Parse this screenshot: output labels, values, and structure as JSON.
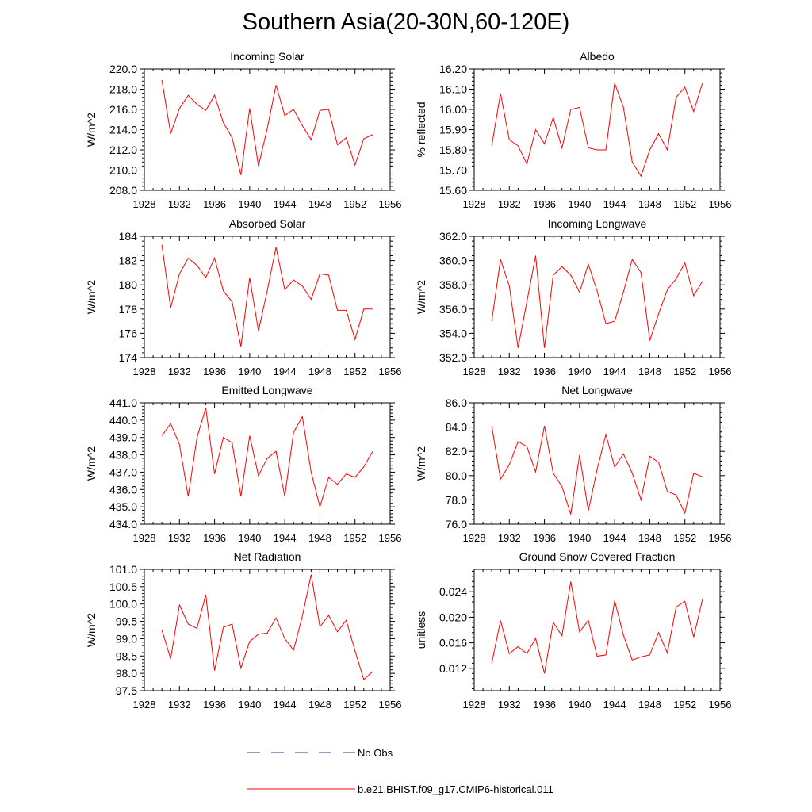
{
  "title": "Southern Asia(20-30N,60-120E)",
  "colors": {
    "model": "#ff0000",
    "obs": "#2c3d8f",
    "axis": "#000000"
  },
  "legend": {
    "obs_label": "No Obs",
    "model_label": "b.e21.BHIST.f09_g17.CMIP6-historical.011"
  },
  "chart_data": [
    {
      "type": "line",
      "title": "Incoming Solar",
      "ylabel": "W/m^2",
      "xlim": [
        1928,
        1956
      ],
      "xticks": [
        1928,
        1932,
        1936,
        1940,
        1944,
        1948,
        1952,
        1956
      ],
      "ylim": [
        208,
        220
      ],
      "yticks": [
        "208.0",
        "210.0",
        "212.0",
        "214.0",
        "216.0",
        "218.0",
        "220.0"
      ],
      "series": [
        {
          "x": [
            1930,
            1931,
            1932,
            1933,
            1934,
            1935,
            1936,
            1937,
            1938,
            1939,
            1940,
            1941,
            1942,
            1943,
            1944,
            1945,
            1946,
            1947,
            1948,
            1949,
            1950,
            1951,
            1952,
            1953,
            1954
          ],
          "values": [
            218.9,
            213.6,
            216.1,
            217.4,
            216.5,
            215.9,
            217.4,
            214.7,
            213.2,
            209.5,
            216.1,
            210.4,
            214.1,
            218.4,
            215.4,
            216.0,
            214.4,
            213.0,
            215.9,
            216.0,
            212.5,
            213.2,
            210.5,
            213.1,
            213.5
          ]
        }
      ]
    },
    {
      "type": "line",
      "title": "Albedo",
      "ylabel": "% reflected",
      "xlim": [
        1928,
        1956
      ],
      "xticks": [
        1928,
        1932,
        1936,
        1940,
        1944,
        1948,
        1952,
        1956
      ],
      "ylim": [
        15.6,
        16.2
      ],
      "yticks": [
        "15.60",
        "15.70",
        "15.80",
        "15.90",
        "16.00",
        "16.10",
        "16.20"
      ],
      "series": [
        {
          "x": [
            1930,
            1931,
            1932,
            1933,
            1934,
            1935,
            1936,
            1937,
            1938,
            1939,
            1940,
            1941,
            1942,
            1943,
            1944,
            1945,
            1946,
            1947,
            1948,
            1949,
            1950,
            1951,
            1952,
            1953,
            1954
          ],
          "values": [
            15.82,
            16.08,
            15.85,
            15.82,
            15.73,
            15.9,
            15.83,
            15.96,
            15.81,
            16.0,
            16.01,
            15.81,
            15.8,
            15.8,
            16.13,
            16.01,
            15.74,
            15.67,
            15.8,
            15.88,
            15.8,
            16.06,
            16.11,
            15.99,
            16.13
          ]
        }
      ]
    },
    {
      "type": "line",
      "title": "Absorbed Solar",
      "ylabel": "W/m^2",
      "xlim": [
        1928,
        1956
      ],
      "xticks": [
        1928,
        1932,
        1936,
        1940,
        1944,
        1948,
        1952,
        1956
      ],
      "ylim": [
        174,
        184
      ],
      "yticks": [
        "174",
        "176",
        "178",
        "180",
        "182",
        "184"
      ],
      "series": [
        {
          "x": [
            1930,
            1931,
            1932,
            1933,
            1934,
            1935,
            1936,
            1937,
            1938,
            1939,
            1940,
            1941,
            1942,
            1943,
            1944,
            1945,
            1946,
            1947,
            1948,
            1949,
            1950,
            1951,
            1952,
            1953,
            1954
          ],
          "values": [
            183.3,
            178.1,
            180.9,
            182.2,
            181.6,
            180.6,
            182.2,
            179.5,
            178.6,
            174.9,
            180.6,
            176.2,
            179.5,
            183.1,
            179.6,
            180.4,
            179.9,
            178.8,
            180.9,
            180.8,
            177.9,
            177.9,
            175.5,
            178.0,
            178.0
          ]
        }
      ]
    },
    {
      "type": "line",
      "title": "Incoming Longwave",
      "ylabel": "W/m^2",
      "xlim": [
        1928,
        1956
      ],
      "xticks": [
        1928,
        1932,
        1936,
        1940,
        1944,
        1948,
        1952,
        1956
      ],
      "ylim": [
        352,
        362
      ],
      "yticks": [
        "352.0",
        "354.0",
        "356.0",
        "358.0",
        "360.0",
        "362.0"
      ],
      "series": [
        {
          "x": [
            1930,
            1931,
            1932,
            1933,
            1934,
            1935,
            1936,
            1937,
            1938,
            1939,
            1940,
            1941,
            1942,
            1943,
            1944,
            1945,
            1946,
            1947,
            1948,
            1949,
            1950,
            1951,
            1952,
            1953,
            1954
          ],
          "values": [
            355.0,
            360.1,
            357.9,
            352.8,
            356.6,
            360.4,
            352.8,
            358.8,
            359.5,
            358.8,
            357.4,
            359.7,
            357.5,
            354.8,
            355.0,
            357.4,
            360.1,
            359.0,
            353.4,
            355.6,
            357.6,
            358.5,
            359.8,
            357.1,
            358.3
          ]
        }
      ]
    },
    {
      "type": "line",
      "title": "Emitted Longwave",
      "ylabel": "W/m^2",
      "xlim": [
        1928,
        1956
      ],
      "xticks": [
        1928,
        1932,
        1936,
        1940,
        1944,
        1948,
        1952,
        1956
      ],
      "ylim": [
        434,
        441
      ],
      "yticks": [
        "434.0",
        "435.0",
        "436.0",
        "437.0",
        "438.0",
        "439.0",
        "440.0",
        "441.0"
      ],
      "series": [
        {
          "x": [
            1930,
            1931,
            1932,
            1933,
            1934,
            1935,
            1936,
            1937,
            1938,
            1939,
            1940,
            1941,
            1942,
            1943,
            1944,
            1945,
            1946,
            1947,
            1948,
            1949,
            1950,
            1951,
            1952,
            1953,
            1954
          ],
          "values": [
            439.1,
            439.8,
            438.6,
            435.6,
            439.0,
            440.7,
            436.9,
            439.0,
            438.7,
            435.6,
            439.1,
            436.8,
            437.8,
            438.2,
            435.6,
            439.3,
            440.2,
            437.0,
            435.0,
            436.7,
            436.3,
            436.9,
            436.7,
            437.3,
            438.2
          ]
        }
      ]
    },
    {
      "type": "line",
      "title": "Net Longwave",
      "ylabel": "W/m^2",
      "xlim": [
        1928,
        1956
      ],
      "xticks": [
        1928,
        1932,
        1936,
        1940,
        1944,
        1948,
        1952,
        1956
      ],
      "ylim": [
        76,
        86
      ],
      "yticks": [
        "76.0",
        "78.0",
        "80.0",
        "82.0",
        "84.0",
        "86.0"
      ],
      "series": [
        {
          "x": [
            1930,
            1931,
            1932,
            1933,
            1934,
            1935,
            1936,
            1937,
            1938,
            1939,
            1940,
            1941,
            1942,
            1943,
            1944,
            1945,
            1946,
            1947,
            1948,
            1949,
            1950,
            1951,
            1952,
            1953,
            1954
          ],
          "values": [
            84.1,
            79.7,
            80.9,
            82.8,
            82.4,
            80.3,
            84.1,
            80.2,
            79.1,
            76.8,
            81.7,
            77.1,
            80.5,
            83.4,
            80.7,
            81.8,
            80.2,
            78.0,
            81.6,
            81.1,
            78.7,
            78.4,
            76.9,
            80.2,
            79.9
          ]
        }
      ]
    },
    {
      "type": "line",
      "title": "Net Radiation",
      "ylabel": "W/m^2",
      "xlim": [
        1928,
        1956
      ],
      "xticks": [
        1928,
        1932,
        1936,
        1940,
        1944,
        1948,
        1952,
        1956
      ],
      "ylim": [
        97.5,
        101
      ],
      "yticks": [
        "97.5",
        "98.0",
        "98.5",
        "99.0",
        "99.5",
        "100.0",
        "100.5",
        "101.0"
      ],
      "series": [
        {
          "x": [
            1930,
            1931,
            1932,
            1933,
            1934,
            1935,
            1936,
            1937,
            1938,
            1939,
            1940,
            1941,
            1942,
            1943,
            1944,
            1945,
            1946,
            1947,
            1948,
            1949,
            1950,
            1951,
            1952,
            1953,
            1954
          ],
          "values": [
            99.25,
            98.42,
            99.97,
            99.42,
            99.3,
            100.27,
            98.08,
            99.33,
            99.42,
            98.15,
            98.92,
            99.13,
            99.16,
            99.6,
            99.0,
            98.67,
            99.65,
            100.85,
            99.35,
            99.67,
            99.2,
            99.53,
            98.65,
            97.82,
            98.05
          ]
        }
      ]
    },
    {
      "type": "line",
      "title": "Ground Snow Covered Fraction",
      "ylabel": "unitless",
      "xlim": [
        1928,
        1956
      ],
      "xticks": [
        1928,
        1932,
        1936,
        1940,
        1944,
        1948,
        1952,
        1956
      ],
      "ylim": [
        0.0085,
        0.0275
      ],
      "yticks": [
        "0.012",
        "0.016",
        "0.020",
        "0.024"
      ],
      "ytick_values": [
        0.012,
        0.016,
        0.02,
        0.024
      ],
      "series": [
        {
          "x": [
            1930,
            1931,
            1932,
            1933,
            1934,
            1935,
            1936,
            1937,
            1938,
            1939,
            1940,
            1941,
            1942,
            1943,
            1944,
            1945,
            1946,
            1947,
            1948,
            1949,
            1950,
            1951,
            1952,
            1953,
            1954
          ],
          "values": [
            0.0128,
            0.0195,
            0.0143,
            0.0154,
            0.0143,
            0.0167,
            0.0112,
            0.0192,
            0.0171,
            0.0256,
            0.0177,
            0.0195,
            0.0139,
            0.0141,
            0.0226,
            0.0172,
            0.0133,
            0.0138,
            0.0141,
            0.0176,
            0.0144,
            0.0216,
            0.0225,
            0.0169,
            0.0228
          ]
        }
      ]
    }
  ]
}
